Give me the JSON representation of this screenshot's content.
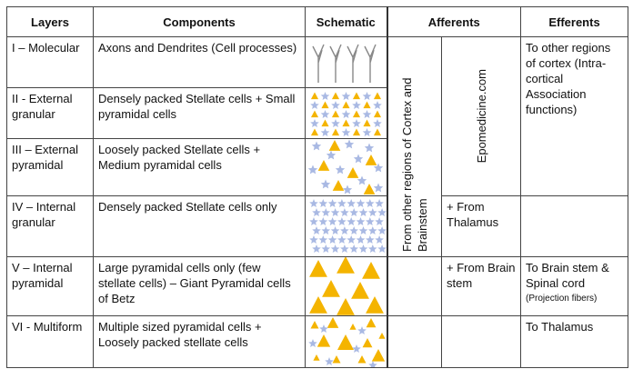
{
  "table": {
    "headers": [
      "Layers",
      "Components",
      "Schematic",
      "Afferents",
      "Efferents"
    ],
    "rows": [
      {
        "layer": "I – Molecular",
        "components": "Axons and Dendrites (Cell processes)"
      },
      {
        "layer": "II - External granular",
        "components": "Densely packed Stellate cells + Small pyramidal cells"
      },
      {
        "layer": "III – External pyramidal",
        "components": "Loosely packed Stellate cells + Medium pyramidal cells"
      },
      {
        "layer": "IV – Internal granular",
        "components": "Densely packed Stellate cells only"
      },
      {
        "layer": "V – Internal pyramidal",
        "components": "Large pyramidal cells only (few stellate cells) – Giant Pyramidal cells of Betz"
      },
      {
        "layer": "VI - Multiform",
        "components": "Multiple sized pyramidal cells + Loosely packed stellate cells"
      }
    ],
    "afferents": {
      "cortex": "From other regions of Cortex and Brainstem",
      "watermark": "Epomedicine.com",
      "thalamus": "+ From Thalamus",
      "brainstem": "+ From Brain stem"
    },
    "efferents": {
      "cortex": "To other regions of cortex (Intra-cortical Association functions)",
      "spinal": "To Brain stem & Spinal cord",
      "projection": "(Projection fibers)",
      "thalamus": "To Thalamus"
    }
  }
}
